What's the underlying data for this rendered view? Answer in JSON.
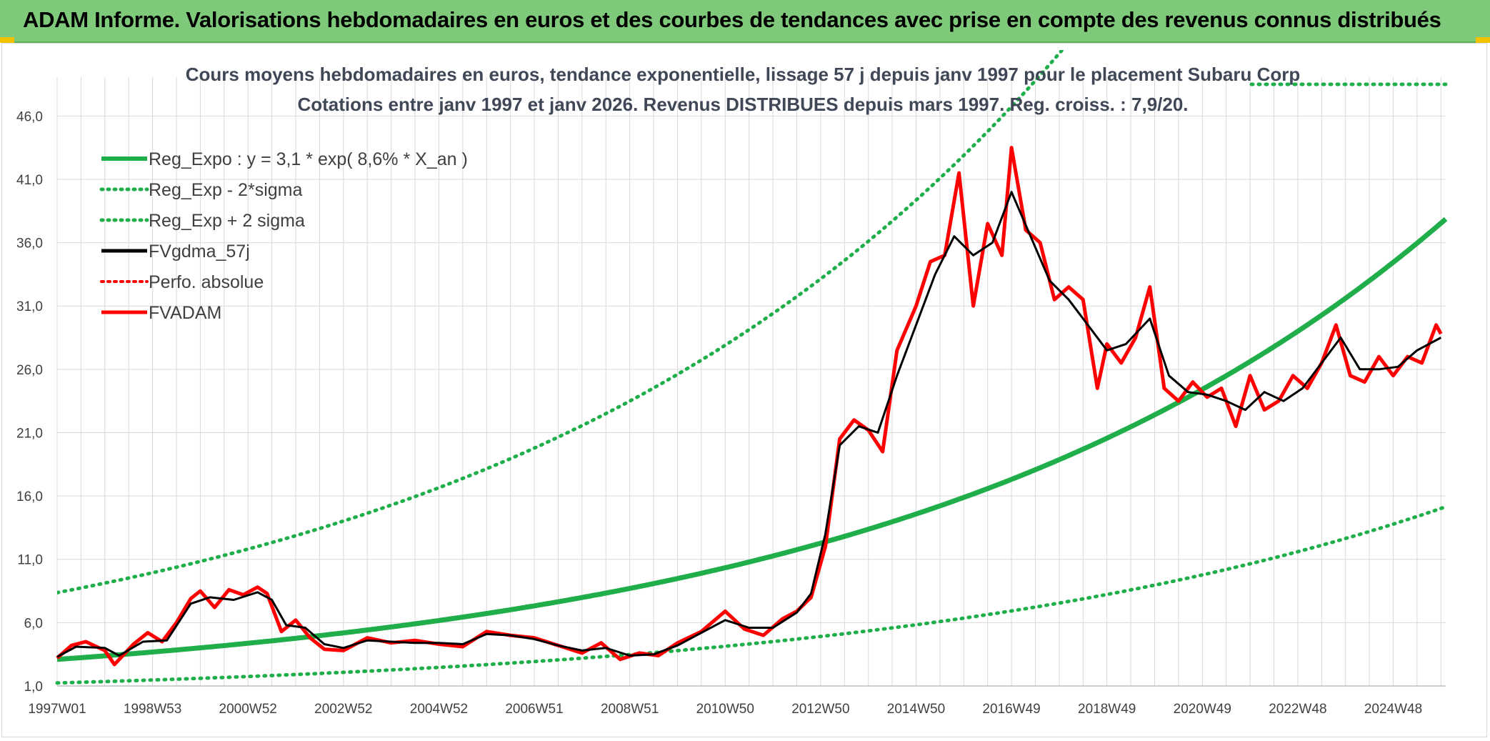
{
  "banner": {
    "title": "ADAM Informe. Valorisations hebdomadaires en euros et des courbes de tendances avec prise en compte des revenus connus distribués"
  },
  "colors": {
    "banner_bg": "#7fc97a",
    "reg_green": "#1fae4a",
    "adam_red": "#ff0000",
    "gdma_black": "#000000",
    "grid": "#d9d9d9"
  },
  "chart_data": {
    "type": "line",
    "title_line1": "Cours moyens hebdomadaires en euros, tendance exponentielle, lissage 57 j depuis janv 1997 pour le placement Subaru Corp",
    "title_line2": "Cotations entre janv 1997 et janv 2026. Revenus DISTRIBUES depuis mars 1997. Reg. croiss. : 7,9/20.",
    "xlabel": "",
    "ylabel": "",
    "xlim_years": [
      1997.0,
      2026.1
    ],
    "ylim": [
      1.0,
      48.5
    ],
    "y_ticks": [
      "1,0",
      "6,0",
      "11,0",
      "16,0",
      "21,0",
      "26,0",
      "31,0",
      "36,0",
      "41,0",
      "46,0"
    ],
    "y_tick_values": [
      1,
      6,
      11,
      16,
      21,
      26,
      31,
      36,
      41,
      46
    ],
    "x_ticks": [
      "1997W01",
      "1998W53",
      "2000W52",
      "2002W52",
      "2004W52",
      "2006W51",
      "2008W51",
      "2010W50",
      "2012W50",
      "2014W50",
      "2016W49",
      "2018W49",
      "2020W49",
      "2022W48",
      "2024W48"
    ],
    "x_tick_years": [
      1997.0,
      1999.0,
      2001.0,
      2003.0,
      2005.0,
      2007.0,
      2009.0,
      2011.0,
      2013.0,
      2015.0,
      2017.0,
      2019.0,
      2021.0,
      2023.0,
      2025.0
    ],
    "legend": [
      {
        "label": "Reg_Expo : y = 3,1 * exp( 8,6% *  X_an )",
        "style": "solid-green"
      },
      {
        "label": "Reg_Exp - 2*sigma",
        "style": "dotted-green"
      },
      {
        "label": "Reg_Exp + 2 sigma",
        "style": "dotted-green"
      },
      {
        "label": "FVgdma_57j",
        "style": "solid-black"
      },
      {
        "label": "Perfo. absolue",
        "style": "dotted-red"
      },
      {
        "label": "FVADAM",
        "style": "solid-red"
      }
    ],
    "regression": {
      "a": 3.1,
      "rate": 0.086,
      "lower_factor": 0.4,
      "upper_factor": 2.7
    },
    "series": [
      {
        "name": "FVADAM",
        "years": [
          1997.0,
          1997.3,
          1997.6,
          1998.0,
          1998.2,
          1998.6,
          1998.9,
          1999.2,
          1999.5,
          1999.8,
          2000.0,
          2000.3,
          2000.6,
          2000.9,
          2001.2,
          2001.4,
          2001.7,
          2002.0,
          2002.3,
          2002.6,
          2003.0,
          2003.5,
          2004.0,
          2004.5,
          2005.0,
          2005.5,
          2006.0,
          2006.5,
          2007.0,
          2007.5,
          2008.0,
          2008.4,
          2008.8,
          2009.2,
          2009.6,
          2010.0,
          2010.5,
          2011.0,
          2011.4,
          2011.8,
          2012.2,
          2012.5,
          2012.8,
          2013.1,
          2013.4,
          2013.7,
          2014.0,
          2014.3,
          2014.6,
          2015.0,
          2015.3,
          2015.6,
          2015.9,
          2016.2,
          2016.5,
          2016.8,
          2017.0,
          2017.3,
          2017.6,
          2017.9,
          2018.2,
          2018.5,
          2018.8,
          2019.0,
          2019.3,
          2019.6,
          2019.9,
          2020.2,
          2020.5,
          2020.8,
          2021.1,
          2021.4,
          2021.7,
          2022.0,
          2022.3,
          2022.6,
          2022.9,
          2023.2,
          2023.5,
          2023.8,
          2024.1,
          2024.4,
          2024.7,
          2025.0,
          2025.3,
          2025.6,
          2025.9,
          2026.0
        ],
        "values": [
          3.2,
          4.2,
          4.5,
          3.8,
          2.7,
          4.3,
          5.2,
          4.5,
          6.0,
          7.9,
          8.5,
          7.2,
          8.6,
          8.2,
          8.8,
          8.3,
          5.3,
          6.2,
          4.8,
          3.9,
          3.8,
          4.8,
          4.4,
          4.6,
          4.3,
          4.1,
          5.3,
          5.0,
          4.8,
          4.2,
          3.6,
          4.4,
          3.1,
          3.6,
          3.4,
          4.4,
          5.3,
          6.9,
          5.5,
          5.0,
          6.3,
          6.9,
          8.0,
          12.0,
          20.5,
          22.0,
          21.2,
          19.5,
          27.5,
          31.0,
          34.5,
          35.0,
          41.5,
          31.0,
          37.5,
          35.0,
          43.5,
          37.0,
          36.0,
          31.5,
          32.5,
          31.5,
          24.5,
          28.0,
          26.5,
          28.5,
          32.5,
          24.5,
          23.5,
          25.0,
          23.8,
          24.5,
          21.5,
          25.5,
          22.8,
          23.5,
          25.5,
          24.5,
          26.5,
          29.5,
          25.5,
          25.0,
          27.0,
          25.5,
          27.0,
          26.5,
          29.5,
          28.8
        ]
      },
      {
        "name": "FVgdma_57j",
        "years": [
          1997.0,
          1997.4,
          1998.0,
          1998.3,
          1998.8,
          1999.3,
          1999.8,
          2000.2,
          2000.7,
          2001.2,
          2001.5,
          2001.8,
          2002.2,
          2002.6,
          2003.0,
          2003.5,
          2004.0,
          2004.5,
          2005.0,
          2005.5,
          2006.0,
          2006.5,
          2007.0,
          2007.5,
          2008.0,
          2008.5,
          2009.0,
          2009.5,
          2010.0,
          2010.5,
          2011.0,
          2011.5,
          2012.0,
          2012.5,
          2012.8,
          2013.1,
          2013.4,
          2013.8,
          2014.2,
          2014.6,
          2015.0,
          2015.4,
          2015.8,
          2016.2,
          2016.6,
          2017.0,
          2017.4,
          2017.8,
          2018.2,
          2018.6,
          2019.0,
          2019.4,
          2019.9,
          2020.3,
          2020.7,
          2021.1,
          2021.5,
          2021.9,
          2022.3,
          2022.7,
          2023.1,
          2023.5,
          2023.9,
          2024.3,
          2024.7,
          2025.1,
          2025.5,
          2026.0
        ],
        "values": [
          3.3,
          4.1,
          4.0,
          3.4,
          4.5,
          4.6,
          7.5,
          8.0,
          7.8,
          8.4,
          7.8,
          5.8,
          5.6,
          4.3,
          4.0,
          4.6,
          4.5,
          4.4,
          4.4,
          4.3,
          5.1,
          5.0,
          4.7,
          4.2,
          3.8,
          4.0,
          3.4,
          3.5,
          4.2,
          5.2,
          6.2,
          5.6,
          5.6,
          6.8,
          8.3,
          13.0,
          20.0,
          21.5,
          21.0,
          25.5,
          29.5,
          33.5,
          36.5,
          35.0,
          36.0,
          40.0,
          36.5,
          33.0,
          31.5,
          29.5,
          27.5,
          28.0,
          30.0,
          25.5,
          24.2,
          24.0,
          23.5,
          22.8,
          24.2,
          23.5,
          24.5,
          26.5,
          28.5,
          26.0,
          26.0,
          26.2,
          27.5,
          28.5
        ]
      }
    ]
  }
}
